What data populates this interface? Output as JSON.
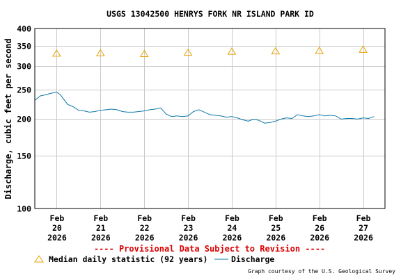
{
  "chart_data": {
    "type": "line",
    "title": "USGS 13042500 HENRYS FORK NR ISLAND PARK ID",
    "ylabel": "Discharge, cubic feet per second",
    "xlabel": "",
    "yscale": "log",
    "ylim": [
      100,
      400
    ],
    "yticks": [
      100,
      150,
      200,
      250,
      300,
      350,
      400
    ],
    "ytick_labels": [
      "100",
      "150",
      "200",
      "250",
      "300",
      "350",
      "400"
    ],
    "xlim": [
      "2026-02-19T12:00",
      "2026-02-27T12:00"
    ],
    "xticks": [
      {
        "line1": "Feb",
        "line2": "20",
        "line3": "2026"
      },
      {
        "line1": "Feb",
        "line2": "21",
        "line3": "2026"
      },
      {
        "line1": "Feb",
        "line2": "22",
        "line3": "2026"
      },
      {
        "line1": "Feb",
        "line2": "23",
        "line3": "2026"
      },
      {
        "line1": "Feb",
        "line2": "24",
        "line3": "2026"
      },
      {
        "line1": "Feb",
        "line2": "25",
        "line3": "2026"
      },
      {
        "line1": "Feb",
        "line2": "26",
        "line3": "2026"
      },
      {
        "line1": "Feb",
        "line2": "27",
        "line3": "2026"
      }
    ],
    "grid": true,
    "provisional_note": "---- Provisional Data Subject to Revision ----",
    "credit": "Graph courtesy of the U.S. Geological Survey",
    "colors": {
      "discharge": "#0a78a8",
      "median": "#e8a000",
      "grid": "#c8c8c8",
      "title": "#000000",
      "provisional": "#dd0000"
    },
    "series": [
      {
        "name": "Median daily statistic (92 years)",
        "marker": "triangle",
        "x": [
          "2026-02-20T00:00",
          "2026-02-21T00:00",
          "2026-02-22T00:00",
          "2026-02-23T00:00",
          "2026-02-24T00:00",
          "2026-02-25T00:00",
          "2026-02-26T00:00",
          "2026-02-27T00:00"
        ],
        "values": [
          330,
          331,
          329,
          332,
          335,
          336,
          337,
          340
        ]
      },
      {
        "name": "Discharge",
        "marker": "line",
        "x": [
          "2026-02-19T12:00",
          "2026-02-19T15:00",
          "2026-02-19T18:00",
          "2026-02-19T21:00",
          "2026-02-20T00:00",
          "2026-02-20T02:00",
          "2026-02-20T06:00",
          "2026-02-20T09:00",
          "2026-02-20T12:00",
          "2026-02-20T15:00",
          "2026-02-20T18:00",
          "2026-02-20T21:00",
          "2026-02-21T00:00",
          "2026-02-21T03:00",
          "2026-02-21T06:00",
          "2026-02-21T09:00",
          "2026-02-21T12:00",
          "2026-02-21T15:00",
          "2026-02-21T18:00",
          "2026-02-21T21:00",
          "2026-02-22T00:00",
          "2026-02-22T03:00",
          "2026-02-22T06:00",
          "2026-02-22T09:00",
          "2026-02-22T12:00",
          "2026-02-22T15:00",
          "2026-02-22T18:00",
          "2026-02-22T21:00",
          "2026-02-23T00:00",
          "2026-02-23T03:00",
          "2026-02-23T06:00",
          "2026-02-23T09:00",
          "2026-02-23T12:00",
          "2026-02-23T15:00",
          "2026-02-23T18:00",
          "2026-02-23T21:00",
          "2026-02-24T00:00",
          "2026-02-24T03:00",
          "2026-02-24T06:00",
          "2026-02-24T09:00",
          "2026-02-24T12:00",
          "2026-02-24T15:00",
          "2026-02-24T18:00",
          "2026-02-24T21:00",
          "2026-02-25T00:00",
          "2026-02-25T03:00",
          "2026-02-25T06:00",
          "2026-02-25T09:00",
          "2026-02-25T12:00",
          "2026-02-25T15:00",
          "2026-02-25T18:00",
          "2026-02-25T21:00",
          "2026-02-26T00:00",
          "2026-02-26T03:00",
          "2026-02-26T06:00",
          "2026-02-26T09:00",
          "2026-02-26T12:00",
          "2026-02-26T15:00",
          "2026-02-26T18:00",
          "2026-02-26T21:00",
          "2026-02-27T00:00",
          "2026-02-27T03:00",
          "2026-02-27T06:00"
        ],
        "values": [
          230,
          238,
          240,
          243,
          245,
          240,
          223,
          219,
          213,
          212,
          210,
          211,
          213,
          214,
          215,
          214,
          211,
          210,
          210,
          211,
          212,
          214,
          215,
          217,
          207,
          203,
          204,
          203,
          204,
          211,
          214,
          210,
          206,
          205,
          204,
          202,
          203,
          201,
          198,
          196,
          199,
          197,
          193,
          194,
          196,
          199,
          201,
          200,
          206,
          204,
          203,
          204,
          206,
          204,
          205,
          204,
          199,
          200,
          200,
          199,
          201,
          200,
          203
        ]
      }
    ]
  }
}
